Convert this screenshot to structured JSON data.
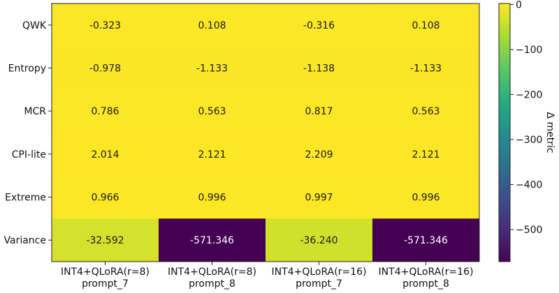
{
  "chart_data": {
    "type": "heatmap",
    "title": "",
    "rows": [
      "QWK",
      "Entropy",
      "MCR",
      "CPI-lite",
      "Extreme",
      "Variance"
    ],
    "columns": [
      [
        "INT4+QLoRA(r=8)",
        "prompt_7"
      ],
      [
        "INT4+QLoRA(r=8)",
        "prompt_8"
      ],
      [
        "INT4+QLoRA(r=16)",
        "prompt_7"
      ],
      [
        "INT4+QLoRA(r=16)",
        "prompt_8"
      ]
    ],
    "values": [
      [
        -0.323,
        0.108,
        -0.316,
        0.108
      ],
      [
        -0.978,
        -1.133,
        -1.138,
        -1.133
      ],
      [
        0.786,
        0.563,
        0.817,
        0.563
      ],
      [
        2.014,
        2.121,
        2.209,
        2.121
      ],
      [
        0.966,
        0.996,
        0.997,
        0.996
      ],
      [
        -32.592,
        -571.346,
        -36.24,
        -571.346
      ]
    ],
    "value_labels": [
      [
        "-0.323",
        "0.108",
        "-0.316",
        "0.108"
      ],
      [
        "-0.978",
        "-1.133",
        "-1.138",
        "-1.133"
      ],
      [
        "0.786",
        "0.563",
        "0.817",
        "0.563"
      ],
      [
        "2.014",
        "2.121",
        "2.209",
        "2.121"
      ],
      [
        "0.966",
        "0.996",
        "0.997",
        "0.996"
      ],
      [
        "-32.592",
        "-571.346",
        "-36.240",
        "-571.346"
      ]
    ],
    "colormap": "viridis",
    "color_range": [
      -571.346,
      2.209
    ],
    "colorbar": {
      "label": "Δ metric",
      "ticks": [
        0,
        -100,
        -200,
        -300,
        -400,
        -500
      ],
      "tick_labels": [
        "0",
        "−100",
        "−200",
        "−300",
        "−400",
        "−500"
      ]
    },
    "grid": false,
    "legend": "colorbar-right"
  }
}
